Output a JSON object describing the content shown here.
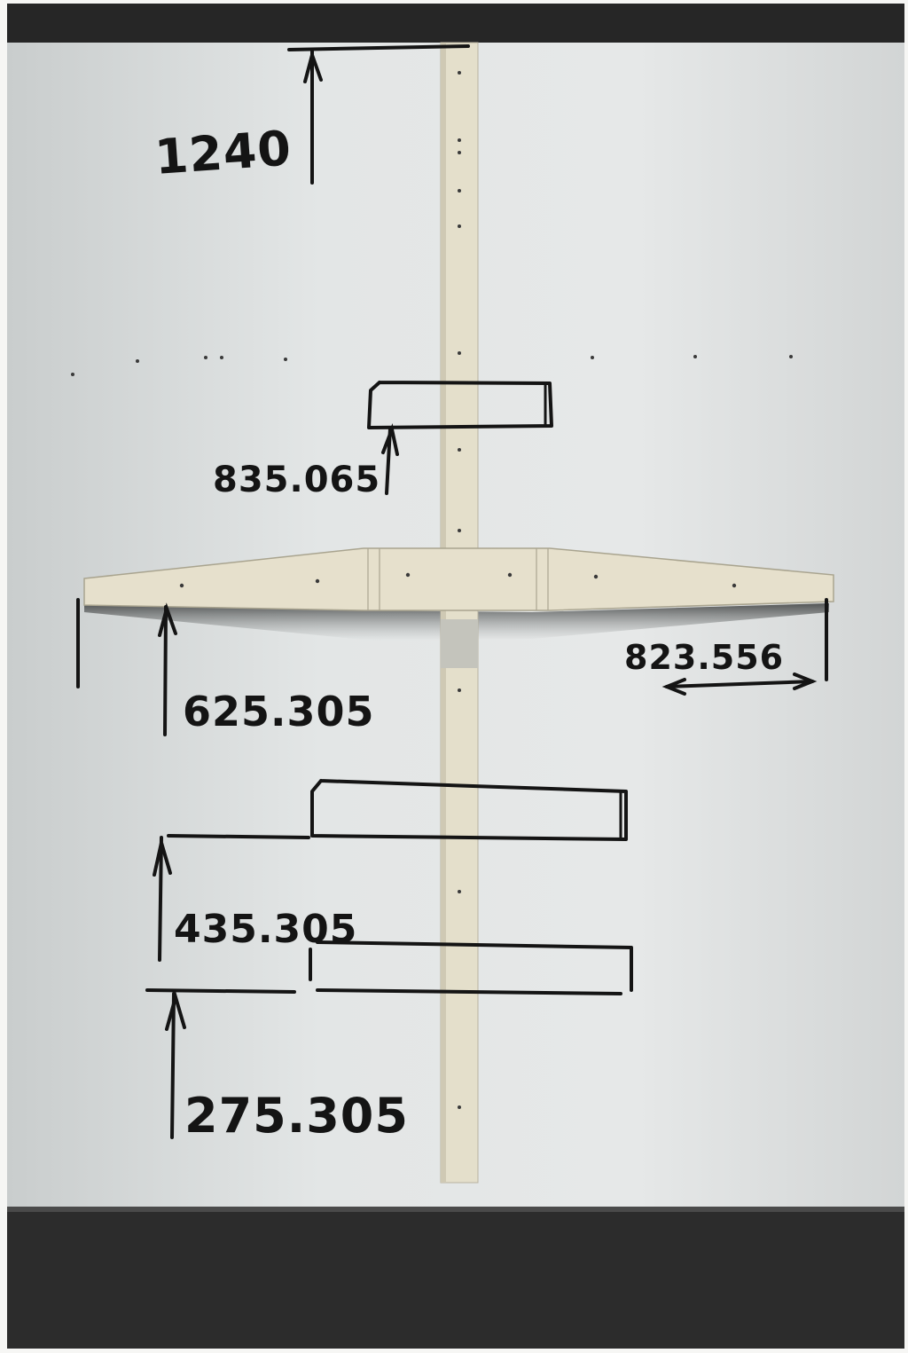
{
  "photo": {
    "colors": {
      "wall_light": "#e4e6e6",
      "wall_mid": "#d4d7d7",
      "ceiling_band": "#262626",
      "floor": "#2c2c2c",
      "wood": "#e6e0cc",
      "wood_shadow": "#c7c2ae",
      "ink": "#141414"
    },
    "annotations": {
      "top_height": "1240",
      "upper_shelf_height": "835.065",
      "crossbar_height": "625.305",
      "crossbar_half_span": "823.556",
      "middle_shelf_height": "435.305",
      "lower_shelf_height": "275.305"
    }
  }
}
